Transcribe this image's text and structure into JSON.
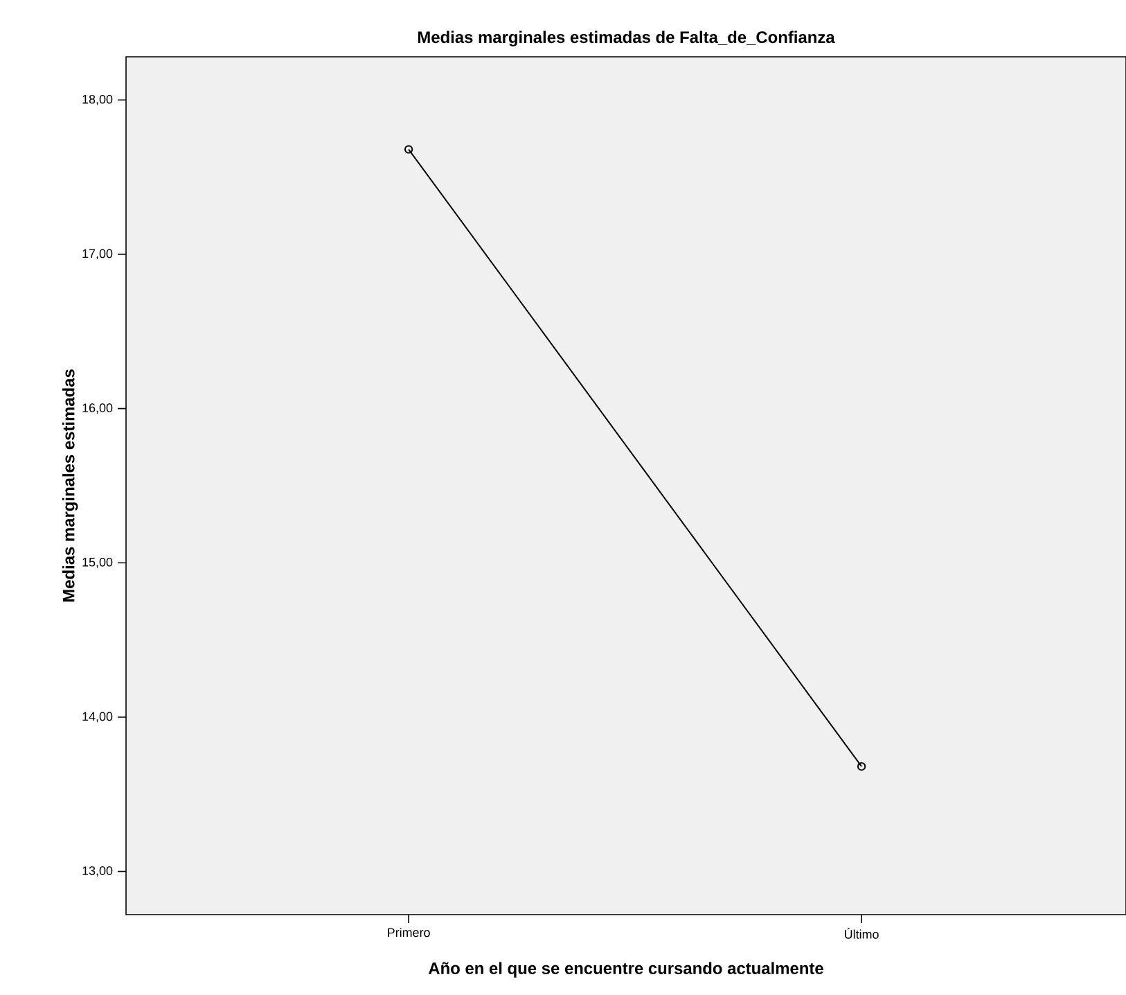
{
  "chart_data": {
    "type": "line",
    "title": "Medias marginales estimadas de Falta_de_Confianza",
    "xlabel": "Año en el que se encuentre cursando actualmente",
    "ylabel": "Medias marginales estimadas",
    "categories": [
      "Primero",
      "Último"
    ],
    "series": [
      {
        "color": "#000000",
        "values": [
          17.68,
          13.68
        ]
      }
    ],
    "ylim": [
      12.72,
      18.28
    ],
    "yticks": [
      {
        "value": 13,
        "label": "13,00"
      },
      {
        "value": 14,
        "label": "14,00"
      },
      {
        "value": 15,
        "label": "15,00"
      },
      {
        "value": 16,
        "label": "16,00"
      },
      {
        "value": 17,
        "label": "17,00"
      },
      {
        "value": 18,
        "label": "18,00"
      }
    ],
    "grid": false,
    "marker": "circle",
    "line_style": "solid"
  }
}
